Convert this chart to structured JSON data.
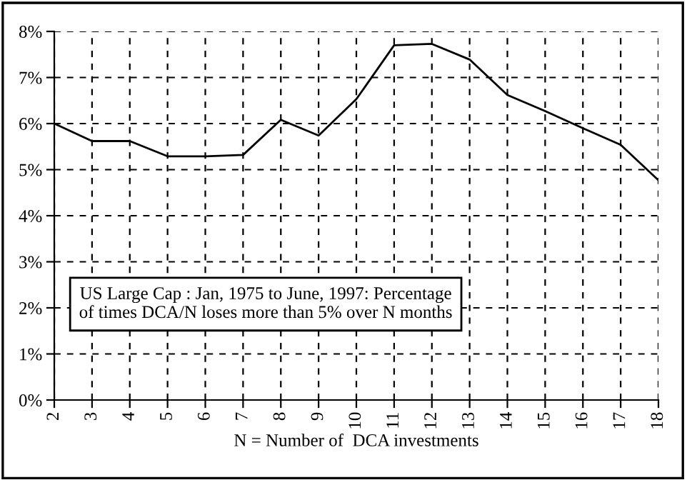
{
  "chart_data": {
    "type": "line",
    "xlabel": "N = Number of  DCA investments",
    "x": [
      2,
      3,
      4,
      5,
      6,
      7,
      8,
      9,
      10,
      11,
      12,
      13,
      14,
      15,
      16,
      17,
      18
    ],
    "series": [
      {
        "color": "#000000",
        "values": [
          6.0,
          5.62,
          5.62,
          5.29,
          5.29,
          5.32,
          6.08,
          5.74,
          6.53,
          7.7,
          7.73,
          7.39,
          6.62,
          6.27,
          5.9,
          5.54,
          4.77
        ]
      }
    ],
    "xlim": [
      2,
      18
    ],
    "xticks": [
      2,
      3,
      4,
      5,
      6,
      7,
      8,
      9,
      10,
      11,
      12,
      13,
      14,
      15,
      16,
      17,
      18
    ],
    "ylim": [
      0,
      8
    ],
    "yticks": [
      {
        "value": 0,
        "label": "0%"
      },
      {
        "value": 1,
        "label": "1%"
      },
      {
        "value": 2,
        "label": "2%"
      },
      {
        "value": 3,
        "label": "3%"
      },
      {
        "value": 4,
        "label": "4%"
      },
      {
        "value": 5,
        "label": "5%"
      },
      {
        "value": 6,
        "label": "6%"
      },
      {
        "value": 7,
        "label": "7%"
      },
      {
        "value": 8,
        "label": "8%"
      }
    ],
    "grid": true,
    "marker": "none",
    "line_style": "solid",
    "annotations": [
      "US Large Cap : Jan, 1975 to June, 1997: Percentage\nof times DCA/N loses more than 5% over N months"
    ]
  }
}
